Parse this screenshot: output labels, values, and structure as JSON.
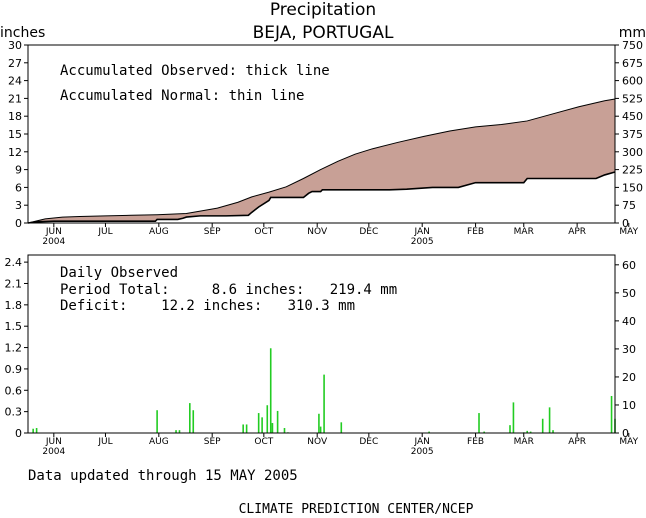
{
  "title": "Precipitation",
  "subtitle": "BEJA, PORTUGAL",
  "footer_updated": "Data updated through 15 MAY 2005",
  "footer_credit": "CLIMATE PREDICTION CENTER/NCEP",
  "chart_data": [
    {
      "type": "area",
      "left_unit": "inches",
      "right_unit": "mm",
      "ylim": [
        0,
        30
      ],
      "yticks_left": [
        "0",
        "3",
        "6",
        "9",
        "12",
        "15",
        "18",
        "21",
        "24",
        "27",
        "30"
      ],
      "yticks_right": [
        "0",
        "75",
        "150",
        "225",
        "300",
        "375",
        "450",
        "525",
        "600",
        "675",
        "750"
      ],
      "x_month_labels": [
        "JUN",
        "JUL",
        "AUG",
        "SEP",
        "OCT",
        "NOV",
        "DEC",
        "JAN",
        "FEB",
        "MAR",
        "APR",
        "MAY"
      ],
      "x_year_labels": [
        {
          "after": "JUN",
          "text": "2004"
        },
        {
          "after": "JAN",
          "text": "2005"
        }
      ],
      "legend_observed": "Accumulated Observed: thick line",
      "legend_normal": "Accumulated Normal: thin line",
      "fill_color": "#c8a096",
      "normal_series": [
        [
          0,
          0
        ],
        [
          10,
          0.7
        ],
        [
          20,
          1.0
        ],
        [
          30,
          1.1
        ],
        [
          45,
          1.2
        ],
        [
          60,
          1.3
        ],
        [
          75,
          1.4
        ],
        [
          92,
          1.6
        ],
        [
          100,
          2.0
        ],
        [
          110,
          2.5
        ],
        [
          122,
          3.5
        ],
        [
          130,
          4.4
        ],
        [
          140,
          5.2
        ],
        [
          150,
          6.1
        ],
        [
          160,
          7.5
        ],
        [
          170,
          9.0
        ],
        [
          180,
          10.4
        ],
        [
          190,
          11.6
        ],
        [
          200,
          12.5
        ],
        [
          215,
          13.6
        ],
        [
          230,
          14.6
        ],
        [
          245,
          15.5
        ],
        [
          260,
          16.2
        ],
        [
          275,
          16.6
        ],
        [
          290,
          17.2
        ],
        [
          305,
          18.4
        ],
        [
          320,
          19.6
        ],
        [
          335,
          20.6
        ],
        [
          341,
          20.9
        ]
      ],
      "observed_series": [
        [
          0,
          0
        ],
        [
          5,
          0.2
        ],
        [
          15,
          0.3
        ],
        [
          30,
          0.3
        ],
        [
          45,
          0.3
        ],
        [
          60,
          0.3
        ],
        [
          74,
          0.3
        ],
        [
          75,
          0.6
        ],
        [
          87,
          0.6
        ],
        [
          90,
          0.8
        ],
        [
          92,
          1.0
        ],
        [
          100,
          1.2
        ],
        [
          115,
          1.2
        ],
        [
          128,
          1.3
        ],
        [
          130,
          1.8
        ],
        [
          134,
          2.7
        ],
        [
          140,
          3.8
        ],
        [
          141,
          4.3
        ],
        [
          160,
          4.3
        ],
        [
          163,
          5.0
        ],
        [
          165,
          5.3
        ],
        [
          170,
          5.3
        ],
        [
          171,
          5.6
        ],
        [
          210,
          5.6
        ],
        [
          220,
          5.7
        ],
        [
          235,
          6.0
        ],
        [
          250,
          6.0
        ],
        [
          260,
          6.8
        ],
        [
          288,
          6.8
        ],
        [
          290,
          7.5
        ],
        [
          330,
          7.5
        ],
        [
          335,
          8.1
        ],
        [
          341,
          8.6
        ]
      ]
    },
    {
      "type": "bar",
      "ylim": [
        0,
        2.5
      ],
      "yticks_left": [
        "0",
        "0.3",
        "0.6",
        "0.9",
        "1.2",
        "1.5",
        "1.8",
        "2.1",
        "2.4"
      ],
      "yticks_right": [
        "0",
        "10",
        "20",
        "30",
        "40",
        "50",
        "60"
      ],
      "x_month_labels": [
        "JUN",
        "JUL",
        "AUG",
        "SEP",
        "OCT",
        "NOV",
        "DEC",
        "JAN",
        "FEB",
        "MAR",
        "APR",
        "MAY"
      ],
      "x_year_labels": [
        {
          "after": "JUN",
          "text": "2004"
        },
        {
          "after": "JAN",
          "text": "2005"
        }
      ],
      "legend_title": "Daily Observed",
      "period_total_line": "Period Total:     8.6 inches:   219.4 mm",
      "deficit_line": "Deficit:    12.2 inches:   310.3 mm",
      "bar_color": "#22cc22",
      "days": [
        3,
        5,
        75,
        86,
        88,
        94,
        96,
        125,
        127,
        134,
        136,
        139,
        141,
        142,
        145,
        149,
        151,
        169,
        170,
        172,
        182,
        233,
        262,
        265,
        280,
        282,
        288,
        290,
        292,
        299,
        303,
        305,
        339,
        341
      ],
      "values": [
        0.06,
        0.07,
        0.32,
        0.04,
        0.04,
        0.42,
        0.32,
        0.12,
        0.12,
        0.28,
        0.22,
        0.39,
        1.19,
        0.14,
        0.31,
        0.07,
        0.01,
        0.27,
        0.09,
        0.82,
        0.15,
        0.02,
        0.28,
        0.02,
        0.11,
        0.43,
        0.01,
        0.03,
        0.02,
        0.2,
        0.36,
        0.04,
        0.52,
        0.2
      ]
    }
  ]
}
